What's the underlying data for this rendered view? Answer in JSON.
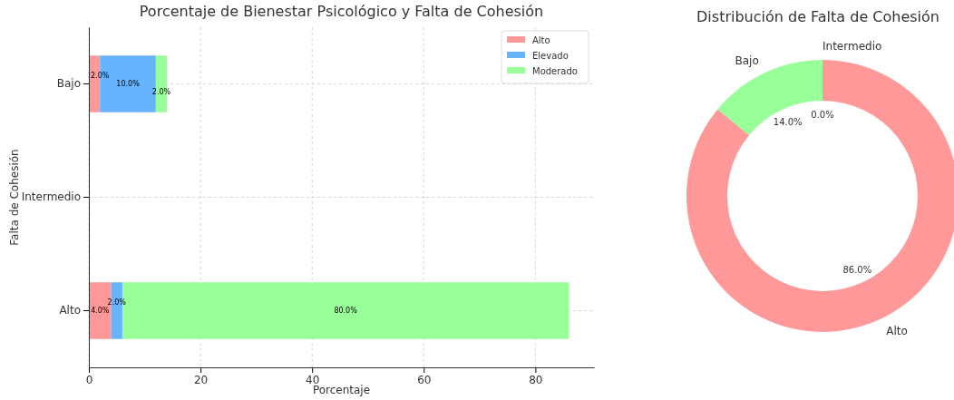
{
  "chart_data": [
    {
      "type": "bar",
      "orientation": "horizontal",
      "stacked": true,
      "title": "Porcentaje de Bienestar Psicológico y Falta de Cohesión",
      "xlabel": "Porcentaje",
      "ylabel": "Falta de Cohesión",
      "categories": [
        "Bajo",
        "Intermedio",
        "Alto"
      ],
      "series": [
        {
          "name": "Alto",
          "color": "#ff9999",
          "values": [
            2.0,
            0,
            4.0
          ],
          "value_labels": [
            "2.0%",
            null,
            "4.0%"
          ]
        },
        {
          "name": "Elevado",
          "color": "#66b3ff",
          "values": [
            10.0,
            0,
            2.0
          ],
          "value_labels": [
            "10.0%",
            null,
            "2.0%"
          ]
        },
        {
          "name": "Moderado",
          "color": "#99ff99",
          "values": [
            2.0,
            0,
            80.0
          ],
          "value_labels": [
            "2.0%",
            null,
            "80.0%"
          ]
        }
      ],
      "xlim": [
        0,
        90.5
      ],
      "xticks": [
        0,
        20,
        40,
        60,
        80
      ],
      "grid": true,
      "legend": "top right"
    },
    {
      "type": "donut",
      "title": "Distribución de Falta de Cohesión",
      "categories": [
        "Alto",
        "Bajo",
        "Intermedio"
      ],
      "values": [
        86.0,
        14.0,
        0.0
      ],
      "colors": [
        "#ff9999",
        "#99ff99",
        "#66b3ff"
      ],
      "value_labels": [
        "86.0%",
        "14.0%",
        "0.0%"
      ]
    }
  ]
}
